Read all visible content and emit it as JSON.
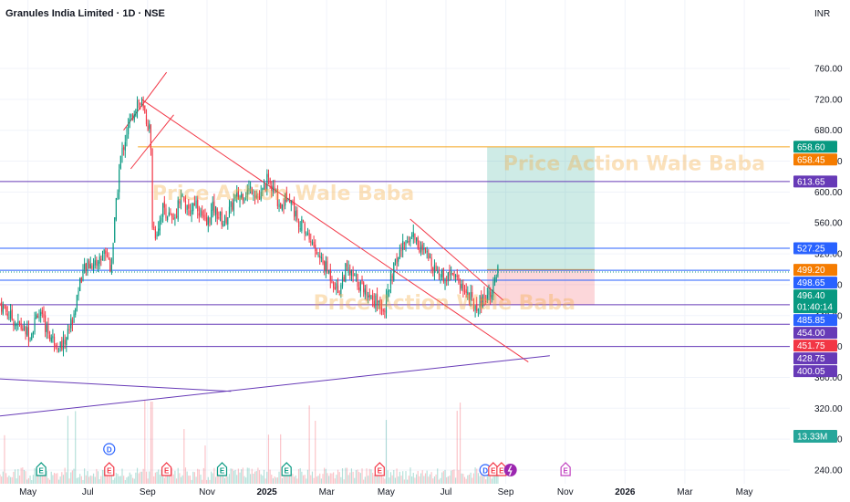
{
  "chart_data": {
    "type": "candlestick",
    "title": "Granules India Limited · 1D · NSE",
    "currency": "INR",
    "y_ticks": [
      760,
      720,
      680,
      640,
      600,
      560,
      520,
      480,
      440,
      400,
      360,
      320,
      280,
      240
    ],
    "y_tick_labels": [
      "760.00",
      "720.00",
      "680.00",
      "640.00",
      "600.00",
      "560.00",
      "520.00",
      "480.00",
      "440.00",
      "400.00",
      "360.00",
      "320.00",
      "280.00",
      "240.00"
    ],
    "ylim": [
      232,
      782
    ],
    "xlim": [
      2024.255,
      2026.46
    ],
    "x_ticks": [
      {
        "label": "May",
        "t": 2024.333
      },
      {
        "label": "Jul",
        "t": 2024.5
      },
      {
        "label": "Sep",
        "t": 2024.667
      },
      {
        "label": "Nov",
        "t": 2024.833
      },
      {
        "label": "2025",
        "t": 2025.0
      },
      {
        "label": "Mar",
        "t": 2025.167
      },
      {
        "label": "May",
        "t": 2025.333
      },
      {
        "label": "Jul",
        "t": 2025.5
      },
      {
        "label": "Sep",
        "t": 2025.667
      },
      {
        "label": "Nov",
        "t": 2025.833
      },
      {
        "label": "2026",
        "t": 2026.0
      },
      {
        "label": "Mar",
        "t": 2026.167
      },
      {
        "label": "May",
        "t": 2026.333
      }
    ],
    "price_key_points": [
      [
        2024.255,
        455
      ],
      [
        2024.3,
        430
      ],
      [
        2024.34,
        415
      ],
      [
        2024.36,
        445
      ],
      [
        2024.4,
        410
      ],
      [
        2024.43,
        400
      ],
      [
        2024.46,
        440
      ],
      [
        2024.48,
        490
      ],
      [
        2024.5,
        505
      ],
      [
        2024.53,
        510
      ],
      [
        2024.55,
        525
      ],
      [
        2024.565,
        500
      ],
      [
        2024.575,
        560
      ],
      [
        2024.59,
        640
      ],
      [
        2024.61,
        680
      ],
      [
        2024.625,
        700
      ],
      [
        2024.64,
        720
      ],
      [
        2024.655,
        705
      ],
      [
        2024.665,
        690
      ],
      [
        2024.675,
        680
      ],
      [
        2024.68,
        560
      ],
      [
        2024.69,
        545
      ],
      [
        2024.71,
        580
      ],
      [
        2024.74,
        560
      ],
      [
        2024.76,
        600
      ],
      [
        2024.78,
        570
      ],
      [
        2024.8,
        590
      ],
      [
        2024.83,
        555
      ],
      [
        2024.85,
        580
      ],
      [
        2024.88,
        560
      ],
      [
        2024.91,
        590
      ],
      [
        2024.94,
        600
      ],
      [
        2024.96,
        605
      ],
      [
        2024.98,
        590
      ],
      [
        2025.0,
        615
      ],
      [
        2025.02,
        600
      ],
      [
        2025.04,
        580
      ],
      [
        2025.06,
        600
      ],
      [
        2025.08,
        570
      ],
      [
        2025.1,
        555
      ],
      [
        2025.12,
        540
      ],
      [
        2025.14,
        520
      ],
      [
        2025.16,
        505
      ],
      [
        2025.18,
        490
      ],
      [
        2025.2,
        470
      ],
      [
        2025.22,
        500
      ],
      [
        2025.25,
        485
      ],
      [
        2025.28,
        470
      ],
      [
        2025.3,
        460
      ],
      [
        2025.32,
        455
      ],
      [
        2025.33,
        450
      ],
      [
        2025.35,
        495
      ],
      [
        2025.37,
        520
      ],
      [
        2025.39,
        540
      ],
      [
        2025.41,
        545
      ],
      [
        2025.43,
        525
      ],
      [
        2025.46,
        510
      ],
      [
        2025.48,
        495
      ],
      [
        2025.5,
        490
      ],
      [
        2025.52,
        500
      ],
      [
        2025.54,
        480
      ],
      [
        2025.56,
        470
      ],
      [
        2025.58,
        452
      ],
      [
        2025.6,
        460
      ],
      [
        2025.62,
        470
      ],
      [
        2025.635,
        480
      ],
      [
        2025.645,
        496
      ]
    ],
    "volume_ticks_hidden": true,
    "last_volume_label": "13.33M",
    "last_price": 496.4,
    "countdown": "01:40:14",
    "price_tags": [
      {
        "value": 658.6,
        "label": "658.60",
        "color": "#089981"
      },
      {
        "value": 658.45,
        "label": "658.45",
        "color": "#f57c00"
      },
      {
        "value": 613.65,
        "label": "613.65",
        "color": "#673ab7"
      },
      {
        "value": 527.25,
        "label": "527.25",
        "color": "#2962ff"
      },
      {
        "value": 499.2,
        "label": "499.20",
        "color": "#f57c00"
      },
      {
        "value": 498.65,
        "label": "498.65",
        "color": "#2962ff"
      },
      {
        "value": 496.4,
        "label": "496.40",
        "color": "#089981"
      },
      {
        "value": 485.85,
        "label": "485.85",
        "color": "#2962ff"
      },
      {
        "value": 454.0,
        "label": "454.00",
        "color": "#673ab7"
      },
      {
        "value": 451.75,
        "label": "451.75",
        "color": "#f23645"
      },
      {
        "value": 428.75,
        "label": "428.75",
        "color": "#673ab7"
      },
      {
        "value": 400.05,
        "label": "400.05",
        "color": "#673ab7"
      }
    ],
    "horizontal_lines": [
      {
        "value": 658.45,
        "color": "#f5a623",
        "x_start": 2024.64
      },
      {
        "value": 613.65,
        "color": "#673ab7"
      },
      {
        "value": 527.25,
        "color": "#2962ff"
      },
      {
        "value": 498.65,
        "color": "#2962ff"
      },
      {
        "value": 485.85,
        "color": "#2962ff"
      },
      {
        "value": 454.0,
        "color": "#673ab7"
      },
      {
        "value": 428.75,
        "color": "#673ab7"
      },
      {
        "value": 400.05,
        "color": "#673ab7"
      }
    ],
    "trend_lines": [
      {
        "from": [
          2024.65,
          720
        ],
        "to": [
          2025.73,
          380
        ],
        "color": "#f23645"
      },
      {
        "from": [
          2025.4,
          565
        ],
        "to": [
          2025.66,
          460
        ],
        "color": "#f23645"
      },
      {
        "from": [
          2024.6,
          680
        ],
        "to": [
          2024.72,
          755
        ],
        "color": "#f23645"
      },
      {
        "from": [
          2024.62,
          630
        ],
        "to": [
          2024.74,
          700
        ],
        "color": "#f23645"
      },
      {
        "from": [
          2024.255,
          310
        ],
        "to": [
          2025.79,
          388
        ],
        "color": "#673ab7"
      },
      {
        "from": [
          2024.255,
          358
        ],
        "to": [
          2024.9,
          342
        ],
        "color": "#673ab7"
      }
    ],
    "position_box": {
      "x_start": 2025.615,
      "x_end": 2025.915,
      "entry": 499.2,
      "target": 658.45,
      "stop": 454.0
    },
    "watermarks": [
      {
        "text": "Price Action Wale Baba",
        "x": 2024.68,
        "y": 590
      },
      {
        "text": "Price Action Wale Baba",
        "x": 2025.66,
        "y": 628
      },
      {
        "text": "Price Action Wale Baba",
        "x": 2025.13,
        "y": 448
      }
    ],
    "event_markers": [
      {
        "letter": "E",
        "t": 2024.37,
        "color": "#089981",
        "row": "bottom"
      },
      {
        "letter": "E",
        "t": 2024.56,
        "color": "#f23645",
        "row": "bottom"
      },
      {
        "letter": "D",
        "t": 2024.56,
        "color": "#2962ff",
        "row": "top"
      },
      {
        "letter": "E",
        "t": 2024.72,
        "color": "#f23645",
        "row": "bottom"
      },
      {
        "letter": "E",
        "t": 2024.875,
        "color": "#089981",
        "row": "bottom"
      },
      {
        "letter": "E",
        "t": 2025.055,
        "color": "#089981",
        "row": "bottom"
      },
      {
        "letter": "E",
        "t": 2025.315,
        "color": "#f23645",
        "row": "bottom"
      },
      {
        "letter": "D",
        "t": 2025.61,
        "color": "#2962ff",
        "row": "bottom"
      },
      {
        "letter": "E",
        "t": 2025.632,
        "color": "#f23645",
        "row": "bottom"
      },
      {
        "letter": "E",
        "t": 2025.655,
        "color": "#f23645",
        "row": "bottom"
      },
      {
        "letter": "E",
        "t": 2025.834,
        "color": "#c040c0",
        "row": "bottom"
      }
    ],
    "split_marker": {
      "t": 2025.68,
      "color": "#9c27b0"
    }
  }
}
